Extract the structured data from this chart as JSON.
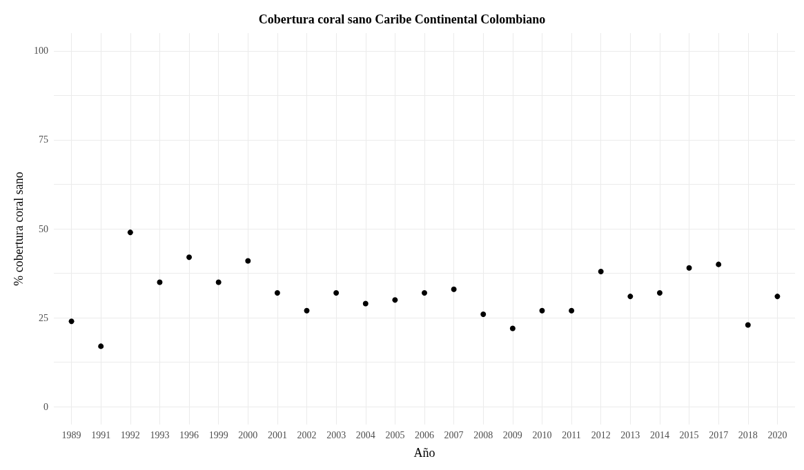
{
  "chart_data": {
    "type": "scatter",
    "title": "Cobertura coral sano Caribe Continental Colombiano",
    "xlabel": "Año",
    "ylabel": "% cobertura coral sano",
    "categories": [
      "1989",
      "1991",
      "1992",
      "1993",
      "1996",
      "1999",
      "2000",
      "2001",
      "2002",
      "2003",
      "2004",
      "2005",
      "2006",
      "2007",
      "2008",
      "2009",
      "2010",
      "2011",
      "2012",
      "2013",
      "2014",
      "2015",
      "2017",
      "2018",
      "2020"
    ],
    "series": [
      {
        "color": "#000000",
        "values": [
          24,
          17,
          49,
          35,
          42,
          35,
          41,
          32,
          27,
          32,
          29,
          30,
          32,
          33,
          26,
          22,
          27,
          27,
          38,
          31,
          32,
          39,
          40,
          23,
          31
        ]
      }
    ],
    "ylim": [
      -5,
      105
    ],
    "yticks": [
      0,
      {
        "value": 12.5,
        "label": null
      },
      25,
      {
        "value": 37.5,
        "label": null
      },
      50,
      {
        "value": 62.5,
        "label": null
      },
      75,
      {
        "value": 87.5,
        "label": null
      },
      100
    ],
    "grid": true,
    "marker": "circle"
  }
}
